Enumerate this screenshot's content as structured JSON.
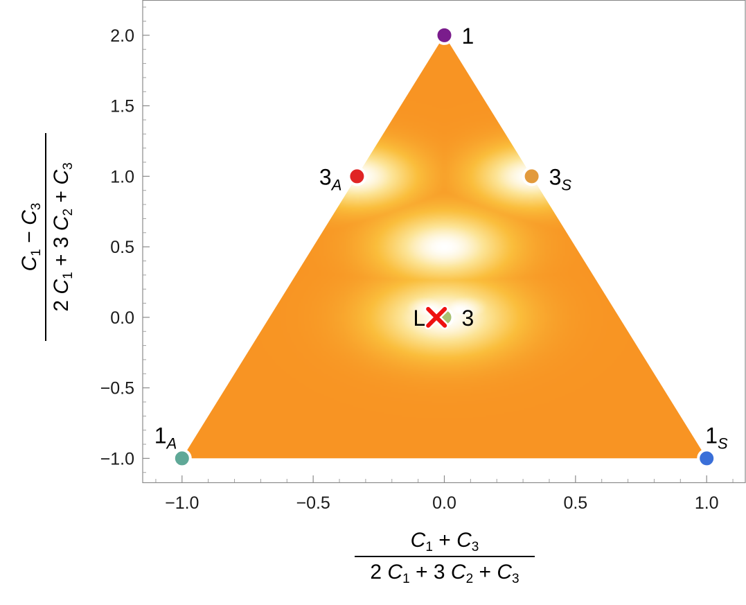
{
  "chart_data": {
    "type": "heatmap",
    "title": "",
    "xlabel": {
      "numerator": [
        "C",
        "1",
        " + ",
        "C",
        "3"
      ],
      "denominator": [
        "2 ",
        "C",
        "1",
        " + 3 ",
        "C",
        "2",
        " + ",
        "C",
        "3"
      ]
    },
    "ylabel": {
      "numerator": [
        "C",
        "1",
        " − ",
        "C",
        "3"
      ],
      "denominator": [
        "2 ",
        "C",
        "1",
        " + 3 ",
        "C",
        "2",
        " + ",
        "C",
        "3"
      ]
    },
    "xlim": [
      -1.15,
      1.15
    ],
    "ylim": [
      -1.17,
      2.25
    ],
    "xticks": [
      -1.0,
      -0.5,
      0.0,
      0.5,
      1.0
    ],
    "xtick_labels": [
      "−1.0",
      "−0.5",
      "0.0",
      "0.5",
      "1.0"
    ],
    "yticks": [
      -1.0,
      -0.5,
      0.0,
      0.5,
      1.0,
      1.5,
      2.0
    ],
    "ytick_labels": [
      "−1.0",
      "−0.5",
      "0.0",
      "0.5",
      "1.0",
      "1.5",
      "2.0"
    ],
    "grid": false,
    "colormap": "inferno (black → purple → orange → white)",
    "region": {
      "shape": "triangle",
      "vertices": [
        [
          -1,
          -1
        ],
        [
          1,
          -1
        ],
        [
          0,
          2
        ]
      ]
    },
    "points": [
      {
        "name": "1",
        "label_main": "1",
        "label_sub": "",
        "x": 0.0,
        "y": 2.0,
        "color": "#7a1c8c",
        "label_side": "right"
      },
      {
        "name": "3A",
        "label_main": "3",
        "label_sub": "A",
        "x": -0.333,
        "y": 1.0,
        "color": "#e02424",
        "label_side": "left"
      },
      {
        "name": "3S",
        "label_main": "3",
        "label_sub": "S",
        "x": 0.333,
        "y": 1.0,
        "color": "#e29a3c",
        "label_side": "right"
      },
      {
        "name": "3",
        "label_main": "3",
        "label_sub": "",
        "x": 0.0,
        "y": 0.0,
        "color": "#a8c070",
        "label_side": "right"
      },
      {
        "name": "1A",
        "label_main": "1",
        "label_sub": "A",
        "x": -1.0,
        "y": -1.0,
        "color": "#5fa897",
        "label_side": "above-left"
      },
      {
        "name": "1S",
        "label_main": "1",
        "label_sub": "S",
        "x": 1.0,
        "y": -1.0,
        "color": "#3a6fd8",
        "label_side": "above-right"
      }
    ],
    "markers": [
      {
        "label": "L",
        "symbol": "x",
        "x": -0.03,
        "y": 0.0,
        "color": "#ee1111"
      }
    ]
  }
}
